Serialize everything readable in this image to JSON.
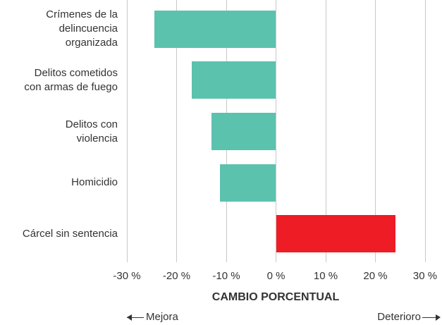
{
  "chart_data": {
    "type": "barh",
    "categories": [
      "Crímenes de la\ndelincuencia\norganizada",
      "Delitos cometidos\ncon armas de fuego",
      "Delitos con\nviolencia",
      "Homicidio",
      "Cárcel sin sentencia"
    ],
    "series": [
      {
        "name": null,
        "colors": [
          "#5bc2ae",
          "#5bc2ae",
          "#5bc2ae",
          "#5bc2ae",
          "#ee1c25"
        ],
        "values": [
          -24.4,
          -16.9,
          -13.0,
          -11.3,
          24.1
        ]
      }
    ],
    "xlabel": "CAMBIO PORCENTUAL",
    "xlim": [
      -30,
      30
    ],
    "xticks": [
      {
        "value": -30,
        "label": "-30 %"
      },
      {
        "value": -20,
        "label": "-20 %"
      },
      {
        "value": -10,
        "label": "-10 %"
      },
      {
        "value": 0,
        "label": "0 %"
      },
      {
        "value": 10,
        "label": "10 %"
      },
      {
        "value": 20,
        "label": "20 %"
      },
      {
        "value": 30,
        "label": "30 %"
      }
    ],
    "grid": true,
    "annotations": [
      "Mejora",
      "Deterioro"
    ]
  }
}
